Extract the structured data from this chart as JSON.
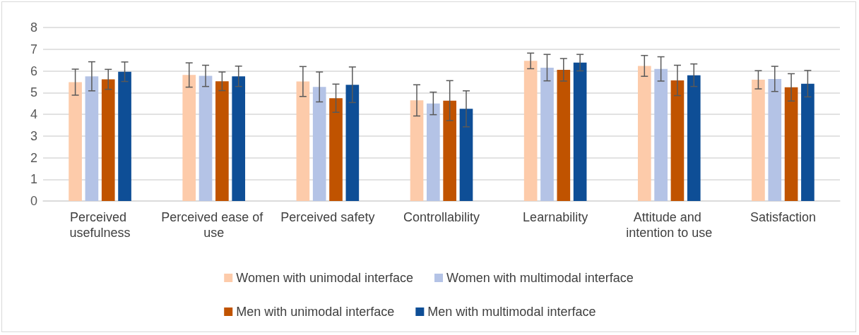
{
  "chart_data": {
    "type": "bar",
    "categories": [
      "Perceived usefulness",
      "Perceived ease of use",
      "Perceived safety",
      "Controllability",
      "Learnability",
      "Attitude and intention to use",
      "Satisfaction"
    ],
    "series": [
      {
        "name": "Women with unimodal interface",
        "color": "#fdcbaa",
        "values": [
          5.48,
          5.81,
          5.51,
          4.64,
          6.46,
          6.23,
          5.59
        ],
        "errors": [
          0.6,
          0.56,
          0.69,
          0.72,
          0.36,
          0.48,
          0.42
        ]
      },
      {
        "name": "Women with multimodal interface",
        "color": "#b4c3e6",
        "values": [
          5.75,
          5.77,
          5.26,
          4.5,
          6.15,
          6.09,
          5.63
        ],
        "errors": [
          0.67,
          0.49,
          0.69,
          0.52,
          0.61,
          0.56,
          0.58
        ]
      },
      {
        "name": "Men with unimodal interface",
        "color": "#c05300",
        "values": [
          5.61,
          5.52,
          4.74,
          4.63,
          6.05,
          5.56,
          5.24
        ],
        "errors": [
          0.46,
          0.43,
          0.65,
          0.92,
          0.52,
          0.7,
          0.63
        ]
      },
      {
        "name": "Men with multimodal interface",
        "color": "#0e4e96",
        "values": [
          5.96,
          5.75,
          5.36,
          4.25,
          6.38,
          5.8,
          5.41
        ],
        "errors": [
          0.45,
          0.47,
          0.82,
          0.83,
          0.38,
          0.52,
          0.61
        ]
      }
    ],
    "ylim": [
      0,
      8
    ],
    "yticks": [
      0,
      1,
      2,
      3,
      4,
      5,
      6,
      7,
      8
    ],
    "grid": "y",
    "legend": "bottom"
  }
}
